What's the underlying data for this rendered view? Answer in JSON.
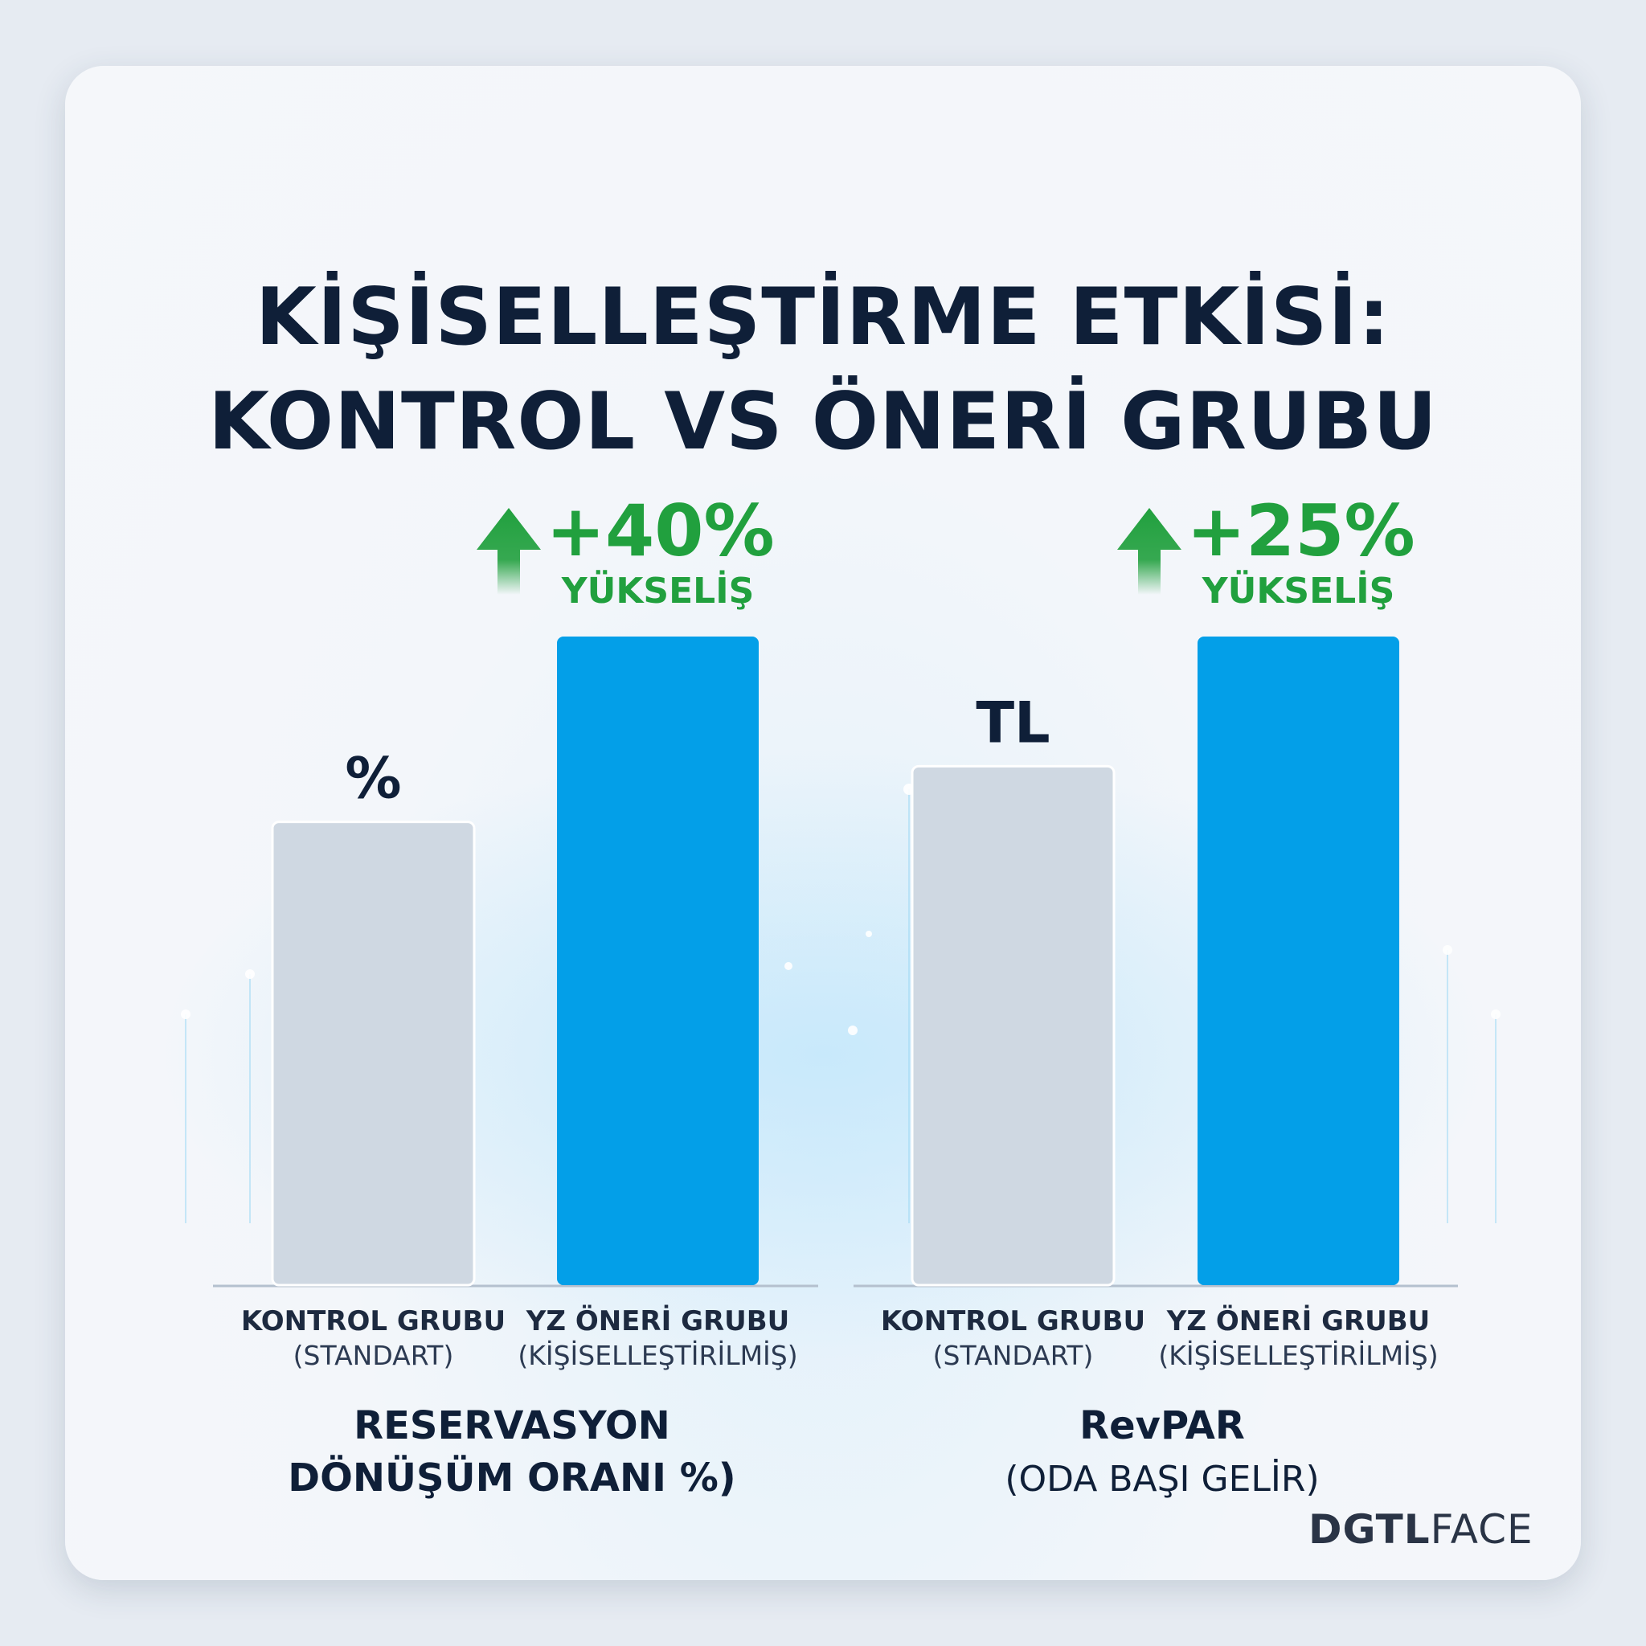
{
  "title_line1": "KİŞİSELLEŞTİRME ETKİSİ:",
  "title_line2": "KONTROL VS ÖNERİ GRUBU",
  "logo": {
    "part1": "DGTL",
    "part2": "FACE"
  },
  "colors": {
    "control": "#cfd8e2",
    "recommendation": "#039fe8",
    "uplift": "#21a03e",
    "text": "#0f1f38"
  },
  "chart_data": [
    {
      "type": "bar",
      "title": "",
      "metric_label_line1": "RESERVASYON",
      "metric_label_line2": "DÖNÜŞÜM ORANI %)",
      "unit_label": "%",
      "categories": [
        {
          "name": "KONTROL GRUBU",
          "sub": "(STANDART)"
        },
        {
          "name": "YZ ÖNERİ GRUBU",
          "sub": "(KİŞİSELLEŞTİRİLMİŞ)"
        }
      ],
      "values": [
        1,
        1.4
      ],
      "uplift": {
        "value": "+40%",
        "label": "YÜKSELİŞ"
      },
      "ylim": [
        0,
        1.4
      ],
      "grid": false
    },
    {
      "type": "bar",
      "title": "",
      "metric_label_line1": "RevPAR",
      "metric_label_line2": "(ODA BAŞI GELİR)",
      "unit_label": "TL",
      "categories": [
        {
          "name": "KONTROL GRUBU",
          "sub": "(STANDART)"
        },
        {
          "name": "YZ ÖNERİ GRUBU",
          "sub": "(KİŞİSELLEŞTİRİLMİŞ)"
        }
      ],
      "values": [
        1,
        1.25
      ],
      "uplift": {
        "value": "+25%",
        "label": "YÜKSELİŞ"
      },
      "ylim": [
        0,
        1.25
      ],
      "grid": false
    }
  ]
}
